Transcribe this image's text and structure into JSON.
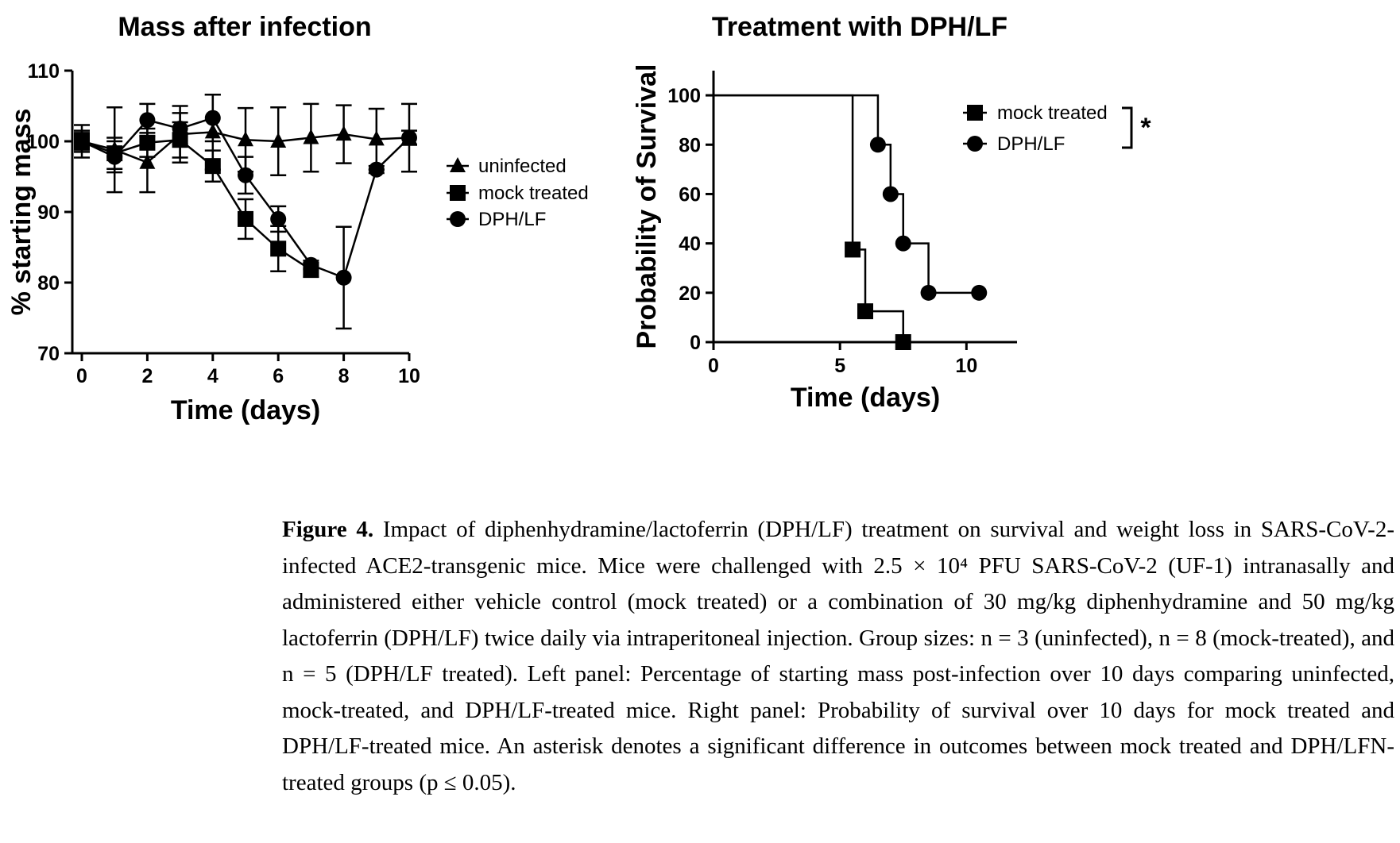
{
  "chart_data": [
    {
      "type": "line",
      "title": "Mass after infection",
      "xlabel": "Time (days)",
      "ylabel": "% starting mass",
      "xlim": [
        0,
        10
      ],
      "ylim": [
        70,
        110
      ],
      "xticks": [
        0,
        2,
        4,
        6,
        8,
        10
      ],
      "yticks": [
        70,
        80,
        90,
        100,
        110
      ],
      "legend_position": "right",
      "series": [
        {
          "name": "uninfected",
          "marker": "triangle",
          "x": [
            0,
            1,
            2,
            3,
            4,
            5,
            6,
            7,
            8,
            9,
            10
          ],
          "y": [
            100,
            98.8,
            97.0,
            101.0,
            101.3,
            100.2,
            100.0,
            100.5,
            101.0,
            100.3,
            100.5
          ],
          "err": [
            2.3,
            6.0,
            4.2,
            4.0,
            5.3,
            4.5,
            4.8,
            4.8,
            4.1,
            4.3,
            4.8
          ]
        },
        {
          "name": "mock treated",
          "marker": "square",
          "x": [
            0,
            1,
            2,
            3,
            4,
            5,
            6,
            7
          ],
          "y": [
            100,
            98.3,
            99.8,
            100.2,
            96.5,
            89.0,
            84.8,
            81.8
          ],
          "err": [
            1.5,
            2.2,
            2.0,
            2.5,
            2.2,
            2.8,
            3.2,
            1.0
          ]
        },
        {
          "name": "DPH/LF",
          "marker": "circle",
          "x": [
            0,
            1,
            2,
            3,
            4,
            5,
            6,
            7,
            8,
            9,
            10
          ],
          "y": [
            100,
            97.8,
            103.0,
            101.8,
            103.3,
            95.2,
            89.0,
            82.5,
            80.7,
            96.0,
            100.5
          ],
          "err": [
            1.2,
            2.2,
            2.3,
            2.2,
            3.3,
            2.6,
            1.8,
            0.6,
            7.2,
            0.5,
            1.0
          ]
        }
      ]
    },
    {
      "type": "line",
      "subtype": "step-survival",
      "title": "Treatment with DPH/LF",
      "xlabel": "Time (days)",
      "ylabel": "Probability of Survival",
      "xlim": [
        0,
        12
      ],
      "ylim": [
        0,
        110
      ],
      "xticks": [
        0,
        5,
        10
      ],
      "yticks": [
        0,
        20,
        40,
        60,
        80,
        100
      ],
      "legend_position": "top-right",
      "annotation": "*",
      "series": [
        {
          "name": "mock treated",
          "marker": "square",
          "steps": [
            [
              0,
              100
            ],
            [
              5.5,
              37.5
            ],
            [
              6,
              12.5
            ],
            [
              7.5,
              0
            ]
          ],
          "points": [
            [
              5.5,
              37.5
            ],
            [
              6,
              12.5
            ],
            [
              7.5,
              0
            ]
          ]
        },
        {
          "name": "DPH/LF",
          "marker": "circle",
          "steps": [
            [
              0,
              100
            ],
            [
              6.5,
              80
            ],
            [
              7,
              60
            ],
            [
              7.5,
              40
            ],
            [
              8.5,
              20
            ],
            [
              10.5,
              20
            ]
          ],
          "points": [
            [
              6.5,
              80
            ],
            [
              7,
              60
            ],
            [
              7.5,
              40
            ],
            [
              8.5,
              20
            ],
            [
              10.5,
              20
            ]
          ]
        }
      ]
    }
  ],
  "caption": {
    "label": "Figure 4.",
    "text": "Impact of diphenhydramine/lactoferrin (DPH/LF) treatment on survival and weight loss in SARS-CoV-2-infected ACE2-transgenic mice. Mice were challenged with 2.5 × 10⁴ PFU SARS-CoV-2 (UF-1) intranasally and administered either vehicle control (mock treated) or a combination of 30 mg/kg diphenhydramine and 50 mg/kg lactoferrin (DPH/LF) twice daily via intraperitoneal injection. Group sizes: n = 3 (uninfected), n = 8 (mock-treated), and n = 5 (DPH/LF treated). Left panel: Percentage of starting mass post-infection over 10 days comparing uninfected, mock-treated, and DPH/LF-treated mice. Right panel: Probability of survival over 10 days for mock treated and DPH/LF-treated mice. An asterisk denotes a significant difference in outcomes between mock treated and DPH/LFN-treated groups (p ≤ 0.05)."
  }
}
